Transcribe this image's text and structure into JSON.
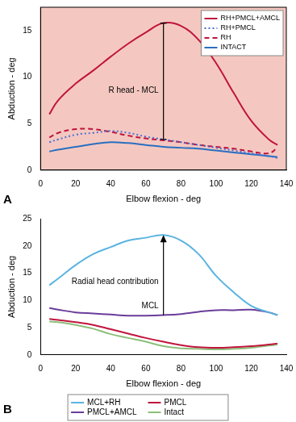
{
  "chart_data": [
    {
      "type": "line",
      "title": "A",
      "xlabel": "Elbow flexion - deg",
      "ylabel": "Abduction - deg",
      "x": [
        5,
        10,
        20,
        30,
        40,
        50,
        60,
        70,
        80,
        90,
        100,
        110,
        120,
        130,
        135
      ],
      "series": [
        {
          "name": "RH+PMCL+AMCL",
          "color": "#c0143c",
          "line_style": "solid",
          "values": [
            6.0,
            7.5,
            9.3,
            10.7,
            12.2,
            13.6,
            14.8,
            15.8,
            15.5,
            14.0,
            11.5,
            8.3,
            5.3,
            3.3,
            2.7
          ]
        },
        {
          "name": "RH+PMCL",
          "color": "#4a6fd0",
          "line_style": "dotted",
          "values": [
            3.0,
            3.3,
            3.8,
            4.0,
            4.2,
            4.0,
            3.6,
            3.3,
            3.0,
            2.7,
            2.4,
            2.1,
            1.8,
            1.5,
            1.3
          ]
        },
        {
          "name": "RH",
          "color": "#c0143c",
          "line_style": "dashed",
          "values": [
            3.5,
            4.0,
            4.4,
            4.4,
            4.1,
            3.7,
            3.4,
            3.2,
            3.0,
            2.7,
            2.5,
            2.3,
            2.0,
            1.8,
            2.4
          ]
        },
        {
          "name": "INTACT",
          "color": "#2a6fc0",
          "line_style": "solid",
          "values": [
            2.0,
            2.2,
            2.5,
            2.8,
            3.0,
            2.9,
            2.7,
            2.5,
            2.4,
            2.3,
            2.1,
            1.9,
            1.7,
            1.5,
            1.4
          ]
        }
      ],
      "xlim": [
        0,
        140
      ],
      "xticks": [
        0,
        20,
        40,
        60,
        80,
        100,
        120,
        140
      ],
      "ylim": [
        0,
        17.5
      ],
      "yticks": [
        0,
        5,
        10,
        15
      ],
      "grid": false,
      "legend": "upper right",
      "annotations": [
        "R head - MCL"
      ]
    },
    {
      "type": "line",
      "title": "B",
      "xlabel": "Elbow flexion - deg",
      "ylabel": "Abduction - deg",
      "x": [
        5,
        10,
        20,
        30,
        40,
        50,
        60,
        70,
        80,
        90,
        100,
        110,
        120,
        130,
        135
      ],
      "series": [
        {
          "name": "MCL+RH",
          "color": "#5ab4e0",
          "line_style": "solid",
          "values": [
            12.8,
            14.0,
            16.5,
            18.5,
            19.8,
            21.0,
            21.5,
            22.0,
            21.0,
            18.5,
            14.5,
            11.5,
            9.0,
            7.8,
            7.3
          ]
        },
        {
          "name": "PMCL+AMCL",
          "color": "#6a3d9a",
          "line_style": "solid",
          "values": [
            8.6,
            8.3,
            7.8,
            7.6,
            7.4,
            7.2,
            7.2,
            7.3,
            7.5,
            7.9,
            8.2,
            8.2,
            8.3,
            7.8,
            7.3
          ]
        },
        {
          "name": "PMCL",
          "color": "#c0143c",
          "line_style": "solid",
          "values": [
            6.6,
            6.4,
            6.0,
            5.5,
            4.7,
            3.9,
            3.1,
            2.4,
            1.8,
            1.4,
            1.3,
            1.4,
            1.6,
            1.9,
            2.1
          ]
        },
        {
          "name": "Intact",
          "color": "#8cbf7a",
          "line_style": "solid",
          "values": [
            6.1,
            6.0,
            5.5,
            4.8,
            3.8,
            3.1,
            2.4,
            1.6,
            1.2,
            1.1,
            1.0,
            1.1,
            1.3,
            1.7,
            1.9
          ]
        }
      ],
      "xlim": [
        0,
        140
      ],
      "xticks": [
        0,
        20,
        40,
        60,
        80,
        100,
        120,
        140
      ],
      "ylim": [
        0,
        25
      ],
      "yticks": [
        0,
        5,
        10,
        15,
        20,
        25
      ],
      "grid": false,
      "legend": "bottom",
      "annotations": [
        "Radial head contribution",
        "MCL"
      ]
    }
  ]
}
